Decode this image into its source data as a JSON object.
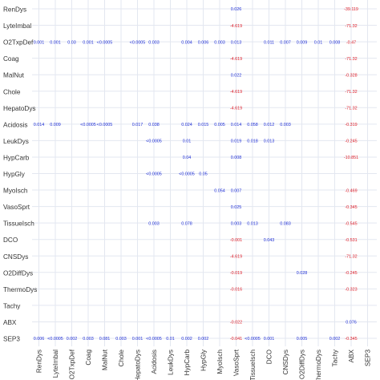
{
  "chart_data": {
    "type": "heatmap",
    "title": "",
    "xlabel": "",
    "ylabel": "",
    "grid": true,
    "colors": {
      "positive": "#1f2fd6",
      "negative": "#e0202a",
      "grid": "#e3e7f0",
      "label": "#333333"
    },
    "columns": [
      "RenDys",
      "LyteImbal",
      "O2TxpDef",
      "Coag",
      "MalNut",
      "Chole",
      "HepatoDys",
      "Acidosis",
      "LeukDys",
      "HypCarb",
      "HypGly",
      "MyoIsch",
      "VasoSprt",
      "TissueIsch",
      "DCO",
      "CNSDys",
      "O2DiffDys",
      "ThermoDys",
      "Tachy",
      "ABX",
      "SEP3"
    ],
    "rows": [
      "RenDys",
      "LyteImbal",
      "O2TxpDef",
      "Coag",
      "MalNut",
      "Chole",
      "HepatoDys",
      "Acidosis",
      "LeukDys",
      "HypCarb",
      "HypGly",
      "MyoIsch",
      "VasoSprt",
      "TissueIsch",
      "DCO",
      "CNSDys",
      "O2DiffDys",
      "ThermoDys",
      "Tachy",
      "ABX",
      "SEP3"
    ],
    "cells": [
      {
        "row": "RenDys",
        "col": "VasoSprt",
        "label": "0.026"
      },
      {
        "row": "RenDys",
        "col": "ABX",
        "label": "-39.119"
      },
      {
        "row": "LyteImbal",
        "col": "VasoSprt",
        "label": "-4.619"
      },
      {
        "row": "LyteImbal",
        "col": "ABX",
        "label": "-71.32"
      },
      {
        "row": "O2TxpDef",
        "col": "RenDys",
        "label": "0.001"
      },
      {
        "row": "O2TxpDef",
        "col": "LyteImbal",
        "label": "0.001"
      },
      {
        "row": "O2TxpDef",
        "col": "O2TxpDef",
        "label": "0.03"
      },
      {
        "row": "O2TxpDef",
        "col": "Coag",
        "label": "0.001"
      },
      {
        "row": "O2TxpDef",
        "col": "MalNut",
        "label": "<0.0005"
      },
      {
        "row": "O2TxpDef",
        "col": "HepatoDys",
        "label": "<0.0005"
      },
      {
        "row": "O2TxpDef",
        "col": "Acidosis",
        "label": "0.003"
      },
      {
        "row": "O2TxpDef",
        "col": "HypCarb",
        "label": "0.004"
      },
      {
        "row": "O2TxpDef",
        "col": "HypGly",
        "label": "0.006"
      },
      {
        "row": "O2TxpDef",
        "col": "MyoIsch",
        "label": "0.003"
      },
      {
        "row": "O2TxpDef",
        "col": "VasoSprt",
        "label": "0.013"
      },
      {
        "row": "O2TxpDef",
        "col": "DCO",
        "label": "0.011"
      },
      {
        "row": "O2TxpDef",
        "col": "CNSDys",
        "label": "0.007"
      },
      {
        "row": "O2TxpDef",
        "col": "O2DiffDys",
        "label": "0.009"
      },
      {
        "row": "O2TxpDef",
        "col": "ThermoDys",
        "label": "0.01"
      },
      {
        "row": "O2TxpDef",
        "col": "Tachy",
        "label": "0.008"
      },
      {
        "row": "O2TxpDef",
        "col": "ABX",
        "label": "-0.47"
      },
      {
        "row": "Coag",
        "col": "VasoSprt",
        "label": "-4.619"
      },
      {
        "row": "Coag",
        "col": "ABX",
        "label": "-71.32"
      },
      {
        "row": "MalNut",
        "col": "VasoSprt",
        "label": "0.022"
      },
      {
        "row": "MalNut",
        "col": "ABX",
        "label": "-0.328"
      },
      {
        "row": "Chole",
        "col": "VasoSprt",
        "label": "-4.619"
      },
      {
        "row": "Chole",
        "col": "ABX",
        "label": "-71.32"
      },
      {
        "row": "HepatoDys",
        "col": "VasoSprt",
        "label": "-4.619"
      },
      {
        "row": "HepatoDys",
        "col": "ABX",
        "label": "-71.32"
      },
      {
        "row": "Acidosis",
        "col": "RenDys",
        "label": "0.014"
      },
      {
        "row": "Acidosis",
        "col": "LyteImbal",
        "label": "0.009"
      },
      {
        "row": "Acidosis",
        "col": "Coag",
        "label": "<0.0005"
      },
      {
        "row": "Acidosis",
        "col": "MalNut",
        "label": "<0.0005"
      },
      {
        "row": "Acidosis",
        "col": "HepatoDys",
        "label": "0.017"
      },
      {
        "row": "Acidosis",
        "col": "Acidosis",
        "label": "0.038"
      },
      {
        "row": "Acidosis",
        "col": "HypCarb",
        "label": "0.024"
      },
      {
        "row": "Acidosis",
        "col": "HypGly",
        "label": "0.015"
      },
      {
        "row": "Acidosis",
        "col": "MyoIsch",
        "label": "0.005"
      },
      {
        "row": "Acidosis",
        "col": "VasoSprt",
        "label": "0.014"
      },
      {
        "row": "Acidosis",
        "col": "TissueIsch",
        "label": "0.058"
      },
      {
        "row": "Acidosis",
        "col": "DCO",
        "label": "0.012"
      },
      {
        "row": "Acidosis",
        "col": "CNSDys",
        "label": "0.003"
      },
      {
        "row": "Acidosis",
        "col": "ABX",
        "label": "-0.319"
      },
      {
        "row": "LeukDys",
        "col": "Acidosis",
        "label": "<0.0005"
      },
      {
        "row": "LeukDys",
        "col": "HypCarb",
        "label": "0.01"
      },
      {
        "row": "LeukDys",
        "col": "VasoSprt",
        "label": "0.019"
      },
      {
        "row": "LeukDys",
        "col": "TissueIsch",
        "label": "0.018"
      },
      {
        "row": "LeukDys",
        "col": "DCO",
        "label": "0.013"
      },
      {
        "row": "LeukDys",
        "col": "ABX",
        "label": "-0.245"
      },
      {
        "row": "HypCarb",
        "col": "HypCarb",
        "label": "0.04"
      },
      {
        "row": "HypCarb",
        "col": "VasoSprt",
        "label": "0.008"
      },
      {
        "row": "HypCarb",
        "col": "ABX",
        "label": "-10.851"
      },
      {
        "row": "HypGly",
        "col": "Acidosis",
        "label": "<0.0005"
      },
      {
        "row": "HypGly",
        "col": "HypCarb",
        "label": "<0.0005"
      },
      {
        "row": "HypGly",
        "col": "HypGly",
        "label": "0.05"
      },
      {
        "row": "MyoIsch",
        "col": "MyoIsch",
        "label": "0.054"
      },
      {
        "row": "MyoIsch",
        "col": "VasoSprt",
        "label": "0.007"
      },
      {
        "row": "MyoIsch",
        "col": "ABX",
        "label": "-0.469"
      },
      {
        "row": "VasoSprt",
        "col": "VasoSprt",
        "label": "0.025"
      },
      {
        "row": "VasoSprt",
        "col": "ABX",
        "label": "-0.345"
      },
      {
        "row": "TissueIsch",
        "col": "Acidosis",
        "label": "0.003"
      },
      {
        "row": "TissueIsch",
        "col": "HypCarb",
        "label": "0.078"
      },
      {
        "row": "TissueIsch",
        "col": "VasoSprt",
        "label": "0.003"
      },
      {
        "row": "TissueIsch",
        "col": "TissueIsch",
        "label": "0.013"
      },
      {
        "row": "TissueIsch",
        "col": "CNSDys",
        "label": "0.083"
      },
      {
        "row": "TissueIsch",
        "col": "ABX",
        "label": "-0.545"
      },
      {
        "row": "DCO",
        "col": "VasoSprt",
        "label": "-0.001"
      },
      {
        "row": "DCO",
        "col": "DCO",
        "label": "0.043"
      },
      {
        "row": "DCO",
        "col": "ABX",
        "label": "-0.531"
      },
      {
        "row": "CNSDys",
        "col": "VasoSprt",
        "label": "-4.619"
      },
      {
        "row": "CNSDys",
        "col": "ABX",
        "label": "-71.32"
      },
      {
        "row": "O2DiffDys",
        "col": "VasoSprt",
        "label": "-0.019"
      },
      {
        "row": "O2DiffDys",
        "col": "O2DiffDys",
        "label": "0.028"
      },
      {
        "row": "O2DiffDys",
        "col": "ABX",
        "label": "-0.245"
      },
      {
        "row": "ThermoDys",
        "col": "VasoSprt",
        "label": "-0.016"
      },
      {
        "row": "ThermoDys",
        "col": "ABX",
        "label": "-0.323"
      },
      {
        "row": "ABX",
        "col": "VasoSprt",
        "label": "-0.022"
      },
      {
        "row": "ABX",
        "col": "ABX",
        "label": "0.076"
      },
      {
        "row": "SEP3",
        "col": "RenDys",
        "label": "0.006"
      },
      {
        "row": "SEP3",
        "col": "LyteImbal",
        "label": "<0.0005"
      },
      {
        "row": "SEP3",
        "col": "O2TxpDef",
        "label": "0.002"
      },
      {
        "row": "SEP3",
        "col": "Coag",
        "label": "0.003"
      },
      {
        "row": "SEP3",
        "col": "MalNut",
        "label": "0.081"
      },
      {
        "row": "SEP3",
        "col": "Chole",
        "label": "0.003"
      },
      {
        "row": "SEP3",
        "col": "HepatoDys",
        "label": "0.001"
      },
      {
        "row": "SEP3",
        "col": "Acidosis",
        "label": "<0.0005"
      },
      {
        "row": "SEP3",
        "col": "LeukDys",
        "label": "0.01"
      },
      {
        "row": "SEP3",
        "col": "HypCarb",
        "label": "0.002"
      },
      {
        "row": "SEP3",
        "col": "HypGly",
        "label": "0.002"
      },
      {
        "row": "SEP3",
        "col": "VasoSprt",
        "label": "-0.041"
      },
      {
        "row": "SEP3",
        "col": "TissueIsch",
        "label": "<0.0005"
      },
      {
        "row": "SEP3",
        "col": "DCO",
        "label": "0.001"
      },
      {
        "row": "SEP3",
        "col": "O2DiffDys",
        "label": "0.005"
      },
      {
        "row": "SEP3",
        "col": "Tachy",
        "label": "0.002"
      },
      {
        "row": "SEP3",
        "col": "ABX",
        "label": "-0.345"
      }
    ]
  }
}
